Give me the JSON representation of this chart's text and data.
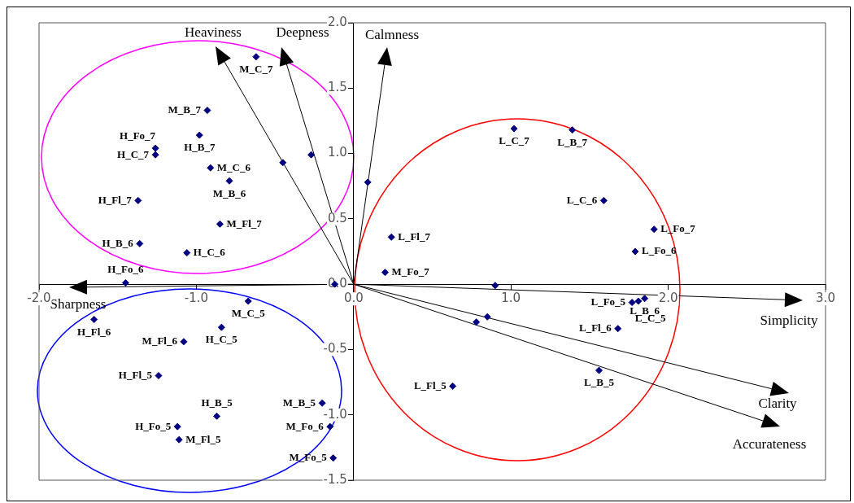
{
  "chart_data": {
    "type": "scatter",
    "marker": "diamond",
    "grid": false,
    "legend": false,
    "xlim": [
      -2,
      3
    ],
    "ylim": [
      -1.5,
      2
    ],
    "xticks": [
      {
        "value": -2,
        "label": "-2.0"
      },
      {
        "value": -1,
        "label": "-1.0"
      },
      {
        "value": 0,
        "label": "0.0"
      },
      {
        "value": 1,
        "label": "1.0"
      },
      {
        "value": 2,
        "label": "2.0"
      },
      {
        "value": 3,
        "label": "3.0"
      }
    ],
    "yticks": [
      {
        "value": -1.5,
        "label": "-1.5"
      },
      {
        "value": -1,
        "label": "-1.0"
      },
      {
        "value": -0.5,
        "label": "-0.5"
      },
      {
        "value": 0,
        "label": "0.0"
      },
      {
        "value": 0.5,
        "label": "0.5"
      },
      {
        "value": 1,
        "label": "1.0"
      },
      {
        "value": 1.5,
        "label": "1.5"
      },
      {
        "value": 2,
        "label": "2.0"
      }
    ],
    "series": [
      {
        "color": "#000080",
        "x": [
          -0.62,
          -0.93,
          -0.98,
          -1.26,
          -1.26,
          -0.91,
          -0.79,
          -1.37,
          -0.85,
          -1.36,
          -1.06,
          -1.45,
          -0.12,
          -0.45,
          -0.27,
          0.09,
          -1.65,
          -0.67,
          -0.84,
          -1.08,
          -1.24,
          -0.87,
          -1.12,
          -1.11,
          -0.2,
          -0.15,
          -0.13,
          1.02,
          1.39,
          1.59,
          1.91,
          1.79,
          0.24,
          0.2,
          0.9,
          0.85,
          0.78,
          1.77,
          1.81,
          1.85,
          1.68,
          1.56,
          0.63
        ],
        "values": [
          1.74,
          1.33,
          1.14,
          1.04,
          0.99,
          0.89,
          0.79,
          0.64,
          0.46,
          0.31,
          0.24,
          0.01,
          0.0,
          0.93,
          0.99,
          0.78,
          -0.27,
          -0.13,
          -0.33,
          -0.44,
          -0.7,
          -1.01,
          -1.09,
          -1.19,
          -0.91,
          -1.09,
          -1.33,
          1.19,
          1.18,
          0.64,
          0.42,
          0.25,
          0.36,
          0.09,
          -0.01,
          -0.25,
          -0.29,
          -0.14,
          -0.13,
          -0.11,
          -0.34,
          -0.66,
          -0.78
        ]
      }
    ],
    "annotations": [
      "Heaviness",
      "Deepness",
      "Calmness",
      "Sharpness",
      "Simplicity",
      "Clarity",
      "Accurateness",
      {
        "text": "M_C_7",
        "x": -0.62,
        "y": 1.74
      },
      {
        "text": "M_B_7",
        "x": -0.93,
        "y": 1.33
      },
      {
        "text": "H_B_7",
        "x": -0.98,
        "y": 1.14
      },
      {
        "text": "H_Fo_7",
        "x": -1.26,
        "y": 1.04
      },
      {
        "text": "H_C_7",
        "x": -1.26,
        "y": 0.99
      },
      {
        "text": "M_C_6",
        "x": -0.91,
        "y": 0.89
      },
      {
        "text": "M_B_6",
        "x": -0.79,
        "y": 0.79
      },
      {
        "text": "H_Fl_7",
        "x": -1.37,
        "y": 0.64
      },
      {
        "text": "M_Fl_7",
        "x": -0.85,
        "y": 0.46
      },
      {
        "text": "H_B_6",
        "x": -1.36,
        "y": 0.31
      },
      {
        "text": "H_C_6",
        "x": -1.06,
        "y": 0.24
      },
      {
        "text": "H_Fo_6",
        "x": -1.45,
        "y": 0.01
      },
      {
        "text": "H_Fl_6",
        "x": -1.65,
        "y": -0.27
      },
      {
        "text": "M_C_5",
        "x": -0.67,
        "y": -0.13
      },
      {
        "text": "H_C_5",
        "x": -0.84,
        "y": -0.33
      },
      {
        "text": "M_Fl_6",
        "x": -1.08,
        "y": -0.44
      },
      {
        "text": "H_Fl_5",
        "x": -1.24,
        "y": -0.7
      },
      {
        "text": "H_B_5",
        "x": -0.87,
        "y": -1.01
      },
      {
        "text": "H_Fo_5",
        "x": -1.12,
        "y": -1.09
      },
      {
        "text": "M_Fl_5",
        "x": -1.11,
        "y": -1.19
      },
      {
        "text": "M_B_5",
        "x": -0.2,
        "y": -0.91
      },
      {
        "text": "M_Fo_6",
        "x": -0.15,
        "y": -1.09
      },
      {
        "text": "M_Fo_5",
        "x": -0.13,
        "y": -1.33
      },
      {
        "text": "L_C_7",
        "x": 1.02,
        "y": 1.19
      },
      {
        "text": "L_B_7",
        "x": 1.39,
        "y": 1.18
      },
      {
        "text": "L_C_6",
        "x": 1.59,
        "y": 0.64
      },
      {
        "text": "L_Fo_7",
        "x": 1.91,
        "y": 0.42
      },
      {
        "text": "L_Fo_6",
        "x": 1.79,
        "y": 0.25
      },
      {
        "text": "L_Fl_7",
        "x": 0.24,
        "y": 0.36
      },
      {
        "text": "M_Fo_7",
        "x": 0.2,
        "y": 0.09
      },
      {
        "text": "L_Fo_5",
        "x": 1.77,
        "y": -0.14
      },
      {
        "text": "L_C_5",
        "x": 1.81,
        "y": -0.13
      },
      {
        "text": "L_B_6",
        "x": 1.85,
        "y": -0.11
      },
      {
        "text": "L_Fl_6",
        "x": 1.68,
        "y": -0.34
      },
      {
        "text": "L_B_5",
        "x": 1.56,
        "y": -0.66
      },
      {
        "text": "L_Fl_5",
        "x": 0.63,
        "y": -0.78
      }
    ]
  }
}
